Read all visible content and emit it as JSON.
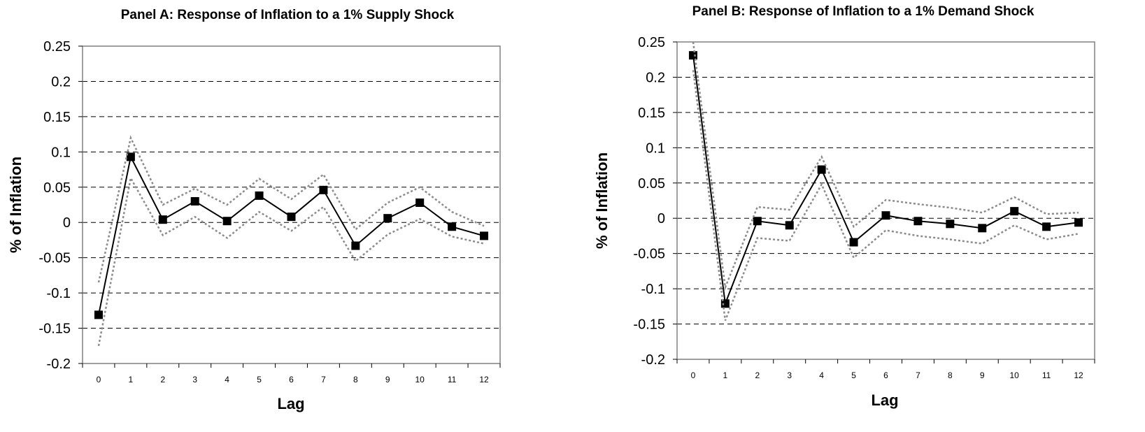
{
  "chart_data": [
    {
      "type": "line",
      "title": "Panel A: Response of Inflation to a 1% Supply Shock",
      "xlabel": "Lag",
      "ylabel": "% of Inflation",
      "x": [
        0,
        1,
        2,
        3,
        4,
        5,
        6,
        7,
        8,
        9,
        10,
        11,
        12
      ],
      "ylim": [
        -0.2,
        0.25
      ],
      "yticks": [
        0.25,
        0.2,
        0.15,
        0.1,
        0.05,
        0,
        -0.05,
        -0.1,
        -0.15,
        -0.2
      ],
      "ytick_labels": [
        "0.25",
        "0.2",
        "0.15",
        "0.1",
        "0.05",
        "0",
        "-0.05",
        "-0.1",
        "-0.15",
        "-0.2"
      ],
      "grid": "horizontal dashed",
      "series": [
        {
          "role": "response",
          "values": [
            -0.131,
            0.093,
            0.004,
            0.03,
            0.002,
            0.038,
            0.008,
            0.046,
            -0.033,
            0.006,
            0.028,
            -0.006,
            -0.019
          ]
        },
        {
          "role": "upper-band",
          "values": [
            -0.085,
            0.12,
            0.025,
            0.048,
            0.025,
            0.062,
            0.033,
            0.068,
            -0.01,
            0.028,
            0.05,
            0.015,
            -0.005
          ]
        },
        {
          "role": "lower-band",
          "values": [
            -0.175,
            0.063,
            -0.018,
            0.008,
            -0.022,
            0.015,
            -0.012,
            0.022,
            -0.055,
            -0.017,
            0.005,
            -0.02,
            -0.03
          ]
        }
      ],
      "colors": {
        "response": "#000000",
        "bands": "#8c8c8c",
        "grid": "#000000",
        "frame": "#808080"
      }
    },
    {
      "type": "line",
      "title": "Panel B: Response of Inflation to a 1% Demand Shock",
      "xlabel": "Lag",
      "ylabel": "% of Inflation",
      "x": [
        0,
        1,
        2,
        3,
        4,
        5,
        6,
        7,
        8,
        9,
        10,
        11,
        12
      ],
      "ylim": [
        -0.2,
        0.25
      ],
      "yticks": [
        0.25,
        0.2,
        0.15,
        0.1,
        0.05,
        0,
        -0.05,
        -0.1,
        -0.15,
        -0.2
      ],
      "ytick_labels": [
        "0.25",
        "0.2",
        "0.15",
        "0.1",
        "0.05",
        "0",
        "-0.05",
        "-0.1",
        "-0.15",
        "-0.2"
      ],
      "grid": "horizontal dashed",
      "series": [
        {
          "role": "response",
          "values": [
            0.231,
            -0.121,
            -0.004,
            -0.01,
            0.069,
            -0.034,
            0.004,
            -0.004,
            -0.008,
            -0.014,
            0.01,
            -0.012,
            -0.006
          ]
        },
        {
          "role": "upper-band",
          "values": [
            0.25,
            -0.098,
            0.016,
            0.012,
            0.087,
            -0.012,
            0.026,
            0.02,
            0.015,
            0.008,
            0.03,
            0.006,
            0.008
          ]
        },
        {
          "role": "lower-band",
          "values": [
            0.21,
            -0.145,
            -0.028,
            -0.032,
            0.048,
            -0.056,
            -0.017,
            -0.025,
            -0.03,
            -0.036,
            -0.01,
            -0.03,
            -0.022
          ]
        }
      ],
      "colors": {
        "response": "#000000",
        "bands": "#8c8c8c",
        "grid": "#000000",
        "frame": "#808080"
      }
    }
  ]
}
